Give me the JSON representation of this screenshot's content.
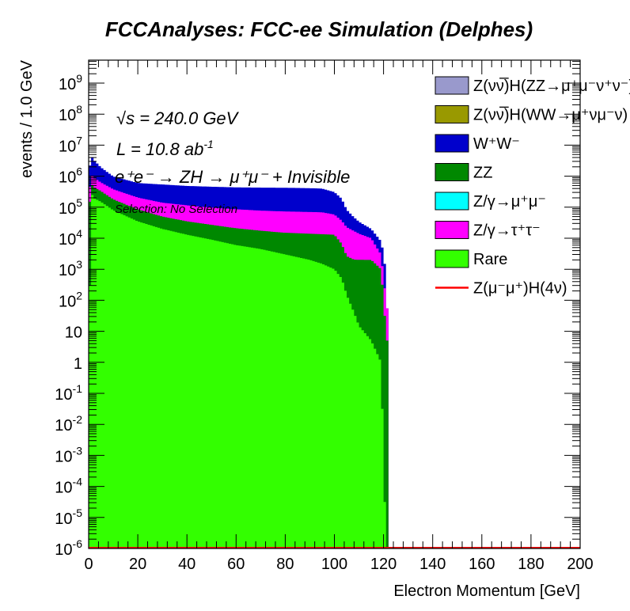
{
  "chart_data": {
    "type": "bar",
    "stacked": true,
    "title": "FCCAnalyses: FCC-ee Simulation (Delphes)",
    "xlabel": "Electron Momentum [GeV]",
    "ylabel": "events / 1.0 GeV",
    "xlim": [
      0,
      200
    ],
    "ylim": [
      1e-06,
      5000000000.0
    ],
    "yscale": "log",
    "x_ticks": [
      0,
      20,
      40,
      60,
      80,
      100,
      120,
      140,
      160,
      180,
      200
    ],
    "x_tick_labels": [
      "0",
      "20",
      "40",
      "60",
      "80",
      "100",
      "120",
      "140",
      "160",
      "180",
      "200"
    ],
    "y_ticks": [
      1e-06,
      1e-05,
      0.0001,
      0.001,
      0.01,
      0.1,
      1,
      10,
      100.0,
      1000.0,
      10000.0,
      100000.0,
      1000000.0,
      10000000.0,
      100000000.0,
      1000000000.0
    ],
    "y_tick_labels": [
      {
        "base": "10",
        "exp": "-6"
      },
      {
        "base": "10",
        "exp": "-5"
      },
      {
        "base": "10",
        "exp": "-4"
      },
      {
        "base": "10",
        "exp": "-3"
      },
      {
        "base": "10",
        "exp": "-2"
      },
      {
        "base": "10",
        "exp": "-1"
      },
      {
        "base": "1",
        "exp": ""
      },
      {
        "base": "10",
        "exp": ""
      },
      {
        "base": "10",
        "exp": "2"
      },
      {
        "base": "10",
        "exp": "3"
      },
      {
        "base": "10",
        "exp": "4"
      },
      {
        "base": "10",
        "exp": "5"
      },
      {
        "base": "10",
        "exp": "6"
      },
      {
        "base": "10",
        "exp": "7"
      },
      {
        "base": "10",
        "exp": "8"
      },
      {
        "base": "10",
        "exp": "9"
      }
    ],
    "legend_position": "top-right",
    "grid": false,
    "series": [
      {
        "name": "Rare",
        "color": "#33ff00",
        "x": [
          0,
          1,
          2,
          5,
          10,
          20,
          30,
          40,
          50,
          60,
          70,
          80,
          90,
          95,
          100,
          103,
          105,
          108,
          110,
          115,
          119,
          121,
          122
        ],
        "values": [
          0.3,
          300000.0,
          200000.0,
          150000.0,
          80000.0,
          35000.0,
          20000.0,
          13000.0,
          9000.0,
          6000.0,
          4500.0,
          3000.0,
          2000.0,
          1500.0,
          1000.0,
          500.0,
          150.0,
          40,
          15,
          5,
          1,
          1e-06,
          1e-06
        ]
      },
      {
        "name": "ZZ",
        "color": "#008800",
        "x": [
          0,
          1,
          2,
          5,
          10,
          20,
          30,
          40,
          50,
          60,
          70,
          80,
          90,
          95,
          100,
          103,
          105,
          108,
          110,
          115,
          119,
          121,
          122
        ],
        "values": [
          0,
          300000.0,
          250000.0,
          180000.0,
          100000.0,
          50000.0,
          30000.0,
          22000.0,
          18000.0,
          15000.0,
          13000.0,
          12000.0,
          12000.0,
          12000.0,
          12000.0,
          6000.0,
          2500.0,
          2000.0,
          2000.0,
          2000.0,
          1000.0,
          10,
          0
        ]
      },
      {
        "name": "Z/γ→τ⁺τ⁻",
        "color": "#ff00ff",
        "x": [
          0,
          1,
          2,
          5,
          10,
          20,
          30,
          40,
          50,
          60,
          70,
          80,
          90,
          95,
          100,
          103,
          105,
          108,
          110,
          115,
          119,
          121,
          122
        ],
        "values": [
          0,
          600000.0,
          450000.0,
          300000.0,
          200000.0,
          120000.0,
          90000.0,
          80000.0,
          70000.0,
          65000.0,
          60000.0,
          58000.0,
          56000.0,
          55000.0,
          45000.0,
          30000.0,
          20000.0,
          15000.0,
          12000.0,
          8000.0,
          2000.0,
          100,
          0
        ]
      },
      {
        "name": "W⁺W⁻",
        "color": "#0000cc",
        "x": [
          0,
          1,
          2,
          5,
          10,
          20,
          30,
          40,
          50,
          60,
          70,
          80,
          90,
          95,
          100,
          103,
          105,
          108,
          110,
          115,
          119,
          121,
          122
        ],
        "values": [
          0,
          3500000.0,
          2500000.0,
          1300000.0,
          600000.0,
          400000.0,
          400000.0,
          370000.0,
          360000.0,
          350000.0,
          350000.0,
          350000.0,
          340000.0,
          330000.0,
          250000.0,
          150000.0,
          60000.0,
          30000.0,
          20000.0,
          10000.0,
          5000.0,
          0,
          0
        ]
      }
    ],
    "legend": [
      {
        "label": "Z(νν̅)H(ZZ→μ⁺μ⁻ν⁺ν⁻)",
        "color": "#9999cc",
        "kind": "box"
      },
      {
        "label": "Z(νν̅)H(WW→μ⁺νμ⁻ν)",
        "color": "#999900",
        "kind": "box"
      },
      {
        "label": "W⁺W⁻",
        "color": "#0000cc",
        "kind": "box"
      },
      {
        "label": "ZZ",
        "color": "#008800",
        "kind": "box"
      },
      {
        "label": "Z/γ→μ⁺μ⁻",
        "color": "#00ffff",
        "kind": "box"
      },
      {
        "label": "Z/γ→τ⁺τ⁻",
        "color": "#ff00ff",
        "kind": "box"
      },
      {
        "label": "Rare",
        "color": "#33ff00",
        "kind": "box"
      },
      {
        "label": "Z(μ⁻μ⁺)H(4ν)",
        "color": "#ff0000",
        "kind": "line"
      }
    ],
    "annotations": {
      "sqrt_s_symbol": "√s",
      "sqrt_s_value": " = 240.0 GeV",
      "lumi": "L = 10.8 ab",
      "lumi_exp": "-1",
      "process": "e⁺e⁻ → ZH → μ⁺μ⁻ + Invisible",
      "selection": "Selection: No Selection"
    }
  }
}
